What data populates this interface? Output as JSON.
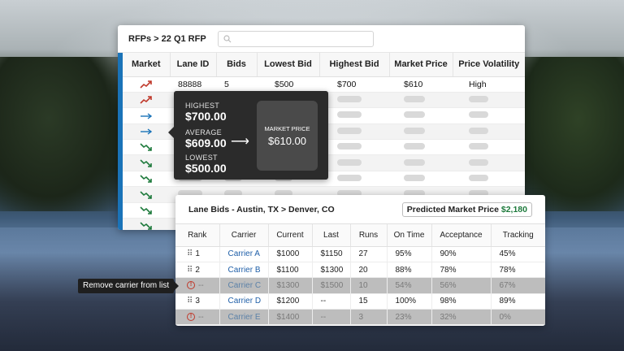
{
  "rfp": {
    "breadcrumb": "RFPs > 22 Q1 RFP",
    "search_placeholder": "",
    "columns": [
      "Market",
      "Lane ID",
      "Bids",
      "Lowest Bid",
      "Highest Bid",
      "Market Price",
      "Price Volatility"
    ],
    "first_row": {
      "lane_id": "88888",
      "bids": "5",
      "lowest": "$500",
      "highest": "$700",
      "market": "$610",
      "volatility": "High"
    },
    "market_trends": [
      "up",
      "up",
      "flat",
      "flat",
      "down",
      "down",
      "down",
      "down",
      "down",
      "down"
    ],
    "colors": {
      "up": "#c0392b",
      "flat": "#1a73b8",
      "down": "#1e7a3c",
      "accent": "#1a73b8"
    }
  },
  "tooltip": {
    "highest_label": "HIGHEST",
    "highest_value": "$700.00",
    "average_label": "AVERAGE",
    "average_value": "$609.00",
    "lowest_label": "LOWEST",
    "lowest_value": "$500.00",
    "arrow": "⟶",
    "market_label": "MARKET PRICE",
    "market_value": "$610.00"
  },
  "bids": {
    "title": "Lane Bids - Austin, TX > Denver, CO",
    "predicted_label": "Predicted Market Price",
    "predicted_value": "$2,180",
    "columns": [
      "Rank",
      "Carrier",
      "Current",
      "Last",
      "Runs",
      "On Time",
      "Acceptance",
      "Tracking"
    ],
    "rows": [
      {
        "rank": "1",
        "removed": false,
        "carrier": "Carrier A",
        "current": "$1000",
        "last": "$1150",
        "runs": "27",
        "ontime": "95%",
        "acceptance": "90%",
        "tracking": "45%"
      },
      {
        "rank": "2",
        "removed": false,
        "carrier": "Carrier B",
        "current": "$1100",
        "last": "$1300",
        "runs": "20",
        "ontime": "88%",
        "acceptance": "78%",
        "tracking": "78%"
      },
      {
        "rank": "--",
        "removed": true,
        "carrier": "Carrier C",
        "current": "$1300",
        "last": "$1500",
        "runs": "10",
        "ontime": "54%",
        "acceptance": "56%",
        "tracking": "67%"
      },
      {
        "rank": "3",
        "removed": false,
        "carrier": "Carrier D",
        "current": "$1200",
        "last": "--",
        "runs": "15",
        "ontime": "100%",
        "acceptance": "98%",
        "tracking": "89%"
      },
      {
        "rank": "--",
        "removed": true,
        "carrier": "Carrier E",
        "current": "$1400",
        "last": "--",
        "runs": "3",
        "ontime": "23%",
        "acceptance": "32%",
        "tracking": "0%"
      }
    ]
  },
  "remove_tooltip": "Remove carrier from list"
}
